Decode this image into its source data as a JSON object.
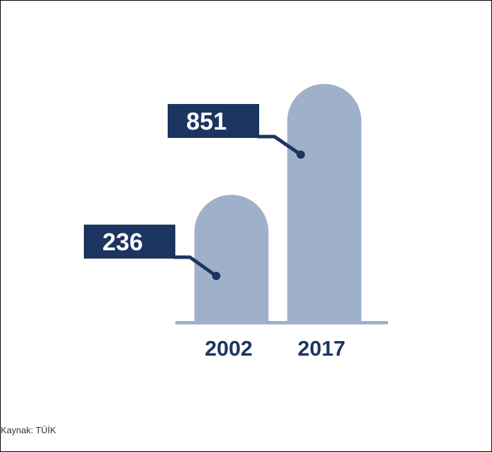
{
  "chart_data": {
    "type": "bar",
    "categories": [
      "2002",
      "2017"
    ],
    "values": [
      236,
      851
    ],
    "title": "",
    "xlabel": "",
    "ylabel": "",
    "ylim": [
      0,
      1000
    ],
    "grid": false,
    "legend": "none",
    "colors": {
      "bar": "#9fb1ca",
      "label_box": "#1c3560",
      "label_text": "#ffffff",
      "tick_text": "#1c3560",
      "baseline": "#9fb1ca"
    }
  },
  "source": "Kaynak: TÜİK"
}
